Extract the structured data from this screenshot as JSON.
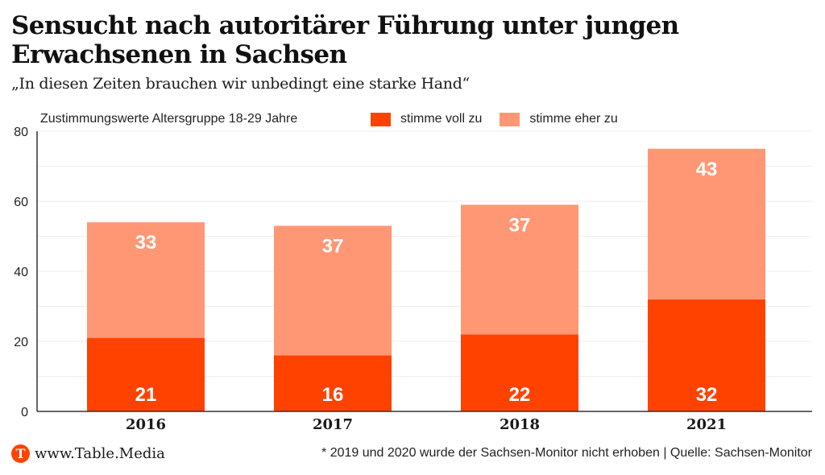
{
  "header": {
    "title": "Sensucht nach autoritärer Führung unter jungen Erwachsenen in Sachsen",
    "subtitle": "„In diesen Zeiten brauchen wir unbedingt eine starke Hand“"
  },
  "footer": {
    "logo_letter": "T",
    "brand": "www.Table.Media",
    "note": "* 2019 und 2020 wurde der Sachsen-Monitor nicht erhoben | Quelle: Sachsen-Monitor"
  },
  "colors": {
    "stimme_voll_zu": "#ff4200",
    "stimme_eher_zu": "#ff9775",
    "label_text": "#ffffff",
    "axis": "#333333",
    "grid": "#eeeeee"
  },
  "chart_data": {
    "type": "bar",
    "stacked": true,
    "title": "Sensucht nach autoritärer Führung unter jungen Erwachsenen in Sachsen",
    "subtitle": "„In diesen Zeiten brauchen wir unbedingt eine starke Hand“",
    "note": "Zustimmungswerte Altersgruppe 18-29 Jahre",
    "categories": [
      "2016",
      "2017",
      "2018",
      "2021"
    ],
    "series": [
      {
        "name": "stimme voll zu",
        "values": [
          21,
          16,
          22,
          32
        ]
      },
      {
        "name": "stimme eher zu",
        "values": [
          33,
          37,
          37,
          43
        ]
      }
    ],
    "xlabel": "",
    "ylabel": "",
    "ylim": [
      0,
      80
    ],
    "yticks": [
      0,
      20,
      40,
      60,
      80
    ],
    "grid": true,
    "grid_step": 10,
    "legend_position": "top-right"
  }
}
